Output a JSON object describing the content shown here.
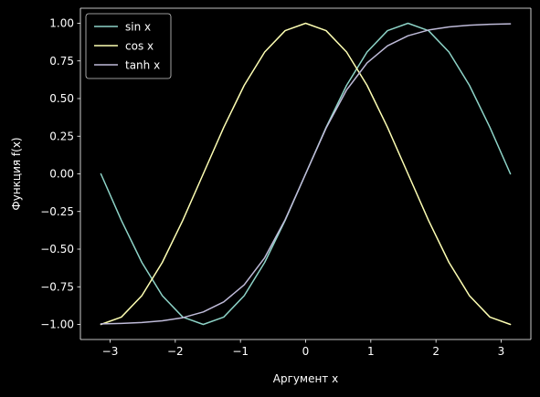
{
  "chart_data": {
    "type": "line",
    "title": "",
    "xlabel": "Аргумент x",
    "ylabel": "Функция f(x)",
    "xlim": [
      -3.4558,
      3.4558
    ],
    "ylim": [
      -1.1,
      1.1
    ],
    "xticks": [
      -3,
      -2,
      -1,
      0,
      1,
      2,
      3
    ],
    "xtick_labels": [
      "−3",
      "−2",
      "−1",
      "0",
      "1",
      "2",
      "3"
    ],
    "yticks": [
      -1.0,
      -0.75,
      -0.5,
      -0.25,
      0.0,
      0.25,
      0.5,
      0.75,
      1.0
    ],
    "ytick_labels": [
      "−1.00",
      "−0.75",
      "−0.50",
      "−0.25",
      "0.00",
      "0.25",
      "0.50",
      "0.75",
      "1.00"
    ],
    "grid": false,
    "legend_position": "top-left",
    "x": [
      -3.1416,
      -2.8274,
      -2.5133,
      -2.1991,
      -1.885,
      -1.5708,
      -1.2566,
      -0.9425,
      -0.6283,
      -0.3142,
      0.0,
      0.3142,
      0.6283,
      0.9425,
      1.2566,
      1.5708,
      1.885,
      2.1991,
      2.5133,
      2.8274,
      3.1416
    ],
    "series": [
      {
        "name": "sin x",
        "color": "#8dd3c7",
        "values": [
          0.0,
          -0.309,
          -0.5878,
          -0.809,
          -0.9511,
          -1.0,
          -0.9511,
          -0.809,
          -0.5878,
          -0.309,
          0.0,
          0.309,
          0.5878,
          0.809,
          0.9511,
          1.0,
          0.9511,
          0.809,
          0.5878,
          0.309,
          0.0
        ]
      },
      {
        "name": "cos x",
        "color": "#feffb3",
        "values": [
          -1.0,
          -0.9511,
          -0.809,
          -0.5878,
          -0.309,
          0.0,
          0.309,
          0.5878,
          0.809,
          0.9511,
          1.0,
          0.9511,
          0.809,
          0.5878,
          0.309,
          0.0,
          -0.309,
          -0.5878,
          -0.809,
          -0.9511,
          -1.0
        ]
      },
      {
        "name": "tanh x",
        "color": "#bfbbd9",
        "values": [
          -0.9963,
          -0.993,
          -0.987,
          -0.9757,
          -0.9551,
          -0.9172,
          -0.8503,
          -0.7369,
          -0.5569,
          -0.3042,
          0.0,
          0.3042,
          0.5569,
          0.7369,
          0.8503,
          0.9172,
          0.9551,
          0.9757,
          0.987,
          0.993,
          0.9963
        ]
      }
    ]
  }
}
